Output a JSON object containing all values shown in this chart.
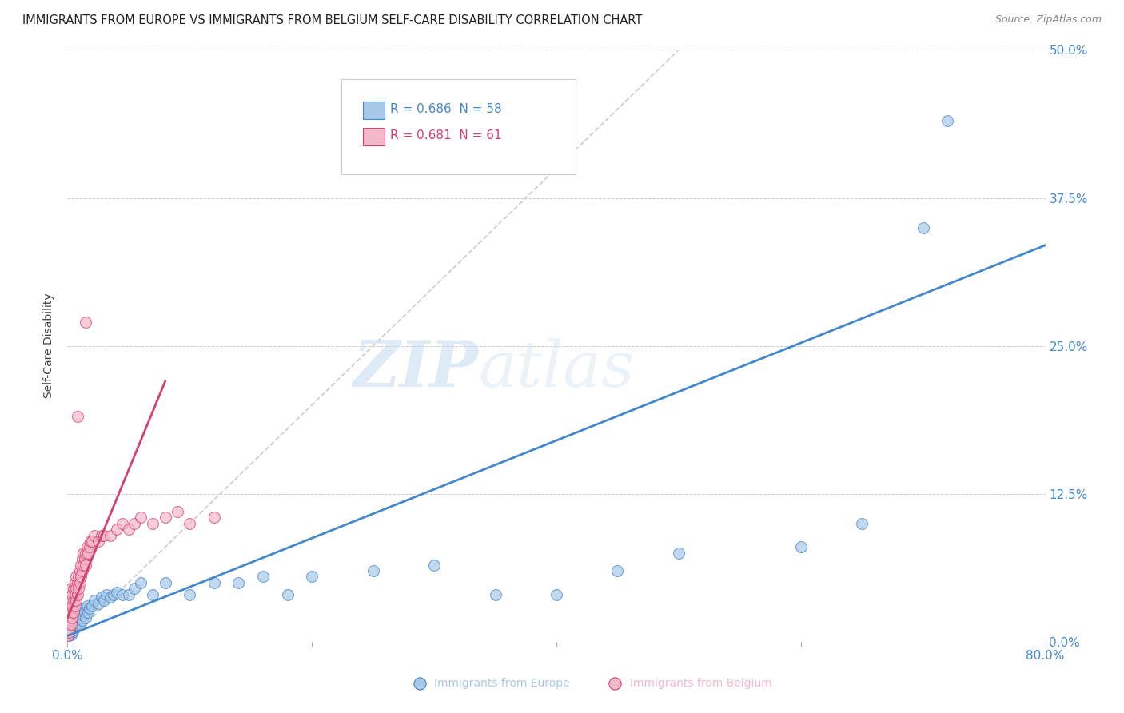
{
  "title": "IMMIGRANTS FROM EUROPE VS IMMIGRANTS FROM BELGIUM SELF-CARE DISABILITY CORRELATION CHART",
  "source": "Source: ZipAtlas.com",
  "ylabel": "Self-Care Disability",
  "xlim": [
    0,
    0.8
  ],
  "ylim": [
    0,
    0.5
  ],
  "xticks": [
    0.0,
    0.2,
    0.4,
    0.6,
    0.8
  ],
  "xtick_labels": [
    "0.0%",
    "",
    "",
    "",
    "80.0%"
  ],
  "ytick_labels_right": [
    "0.0%",
    "12.5%",
    "25.0%",
    "37.5%",
    "50.0%"
  ],
  "yticks_right": [
    0.0,
    0.125,
    0.25,
    0.375,
    0.5
  ],
  "watermark_zip": "ZIP",
  "watermark_atlas": "atlas",
  "blue_color": "#a8c8e8",
  "pink_color": "#f4b8c8",
  "blue_line_color": "#4488cc",
  "pink_line_color": "#d44070",
  "diag_color": "#cccccc",
  "background_color": "#ffffff",
  "grid_color": "#cccccc",
  "blue_scatter_x": [
    0.001,
    0.002,
    0.002,
    0.003,
    0.003,
    0.004,
    0.004,
    0.005,
    0.005,
    0.006,
    0.006,
    0.007,
    0.007,
    0.008,
    0.008,
    0.009,
    0.01,
    0.01,
    0.011,
    0.012,
    0.012,
    0.013,
    0.014,
    0.015,
    0.016,
    0.017,
    0.018,
    0.02,
    0.022,
    0.025,
    0.028,
    0.03,
    0.032,
    0.035,
    0.038,
    0.04,
    0.045,
    0.05,
    0.055,
    0.06,
    0.07,
    0.08,
    0.1,
    0.12,
    0.14,
    0.16,
    0.18,
    0.2,
    0.25,
    0.3,
    0.35,
    0.4,
    0.45,
    0.5,
    0.6,
    0.65,
    0.7,
    0.72
  ],
  "blue_scatter_y": [
    0.005,
    0.008,
    0.01,
    0.006,
    0.012,
    0.008,
    0.015,
    0.01,
    0.018,
    0.012,
    0.02,
    0.015,
    0.022,
    0.018,
    0.025,
    0.02,
    0.015,
    0.025,
    0.02,
    0.018,
    0.028,
    0.022,
    0.025,
    0.02,
    0.03,
    0.025,
    0.028,
    0.03,
    0.035,
    0.032,
    0.038,
    0.035,
    0.04,
    0.038,
    0.04,
    0.042,
    0.04,
    0.04,
    0.045,
    0.05,
    0.04,
    0.05,
    0.04,
    0.05,
    0.05,
    0.055,
    0.04,
    0.055,
    0.06,
    0.065,
    0.04,
    0.04,
    0.06,
    0.075,
    0.08,
    0.1,
    0.35,
    0.44
  ],
  "pink_scatter_x": [
    0.0005,
    0.001,
    0.001,
    0.001,
    0.002,
    0.002,
    0.002,
    0.002,
    0.003,
    0.003,
    0.003,
    0.003,
    0.004,
    0.004,
    0.004,
    0.005,
    0.005,
    0.005,
    0.006,
    0.006,
    0.006,
    0.007,
    0.007,
    0.007,
    0.008,
    0.008,
    0.009,
    0.009,
    0.01,
    0.01,
    0.011,
    0.011,
    0.012,
    0.012,
    0.013,
    0.013,
    0.014,
    0.015,
    0.015,
    0.016,
    0.017,
    0.018,
    0.019,
    0.02,
    0.022,
    0.025,
    0.028,
    0.03,
    0.035,
    0.04,
    0.045,
    0.05,
    0.055,
    0.06,
    0.07,
    0.08,
    0.09,
    0.1,
    0.12,
    0.015,
    0.008
  ],
  "pink_scatter_y": [
    0.005,
    0.008,
    0.015,
    0.025,
    0.01,
    0.018,
    0.025,
    0.035,
    0.015,
    0.025,
    0.035,
    0.045,
    0.02,
    0.03,
    0.04,
    0.025,
    0.035,
    0.045,
    0.03,
    0.04,
    0.05,
    0.035,
    0.045,
    0.055,
    0.04,
    0.05,
    0.045,
    0.055,
    0.05,
    0.06,
    0.055,
    0.065,
    0.06,
    0.07,
    0.065,
    0.075,
    0.07,
    0.065,
    0.075,
    0.08,
    0.075,
    0.08,
    0.085,
    0.085,
    0.09,
    0.085,
    0.09,
    0.09,
    0.09,
    0.095,
    0.1,
    0.095,
    0.1,
    0.105,
    0.1,
    0.105,
    0.11,
    0.1,
    0.105,
    0.27,
    0.19
  ],
  "blue_line_x": [
    0.0,
    0.8
  ],
  "blue_line_y": [
    0.005,
    0.335
  ],
  "pink_line_x": [
    0.0,
    0.08
  ],
  "pink_line_y": [
    0.02,
    0.22
  ],
  "diag_line_x": [
    0.0,
    0.5
  ],
  "diag_line_y": [
    0.0,
    0.5
  ],
  "legend_R_blue": "0.686",
  "legend_N_blue": "58",
  "legend_R_pink": "0.681",
  "legend_N_pink": "61",
  "legend_label_blue": "Immigrants from Europe",
  "legend_label_pink": "Immigrants from Belgium"
}
